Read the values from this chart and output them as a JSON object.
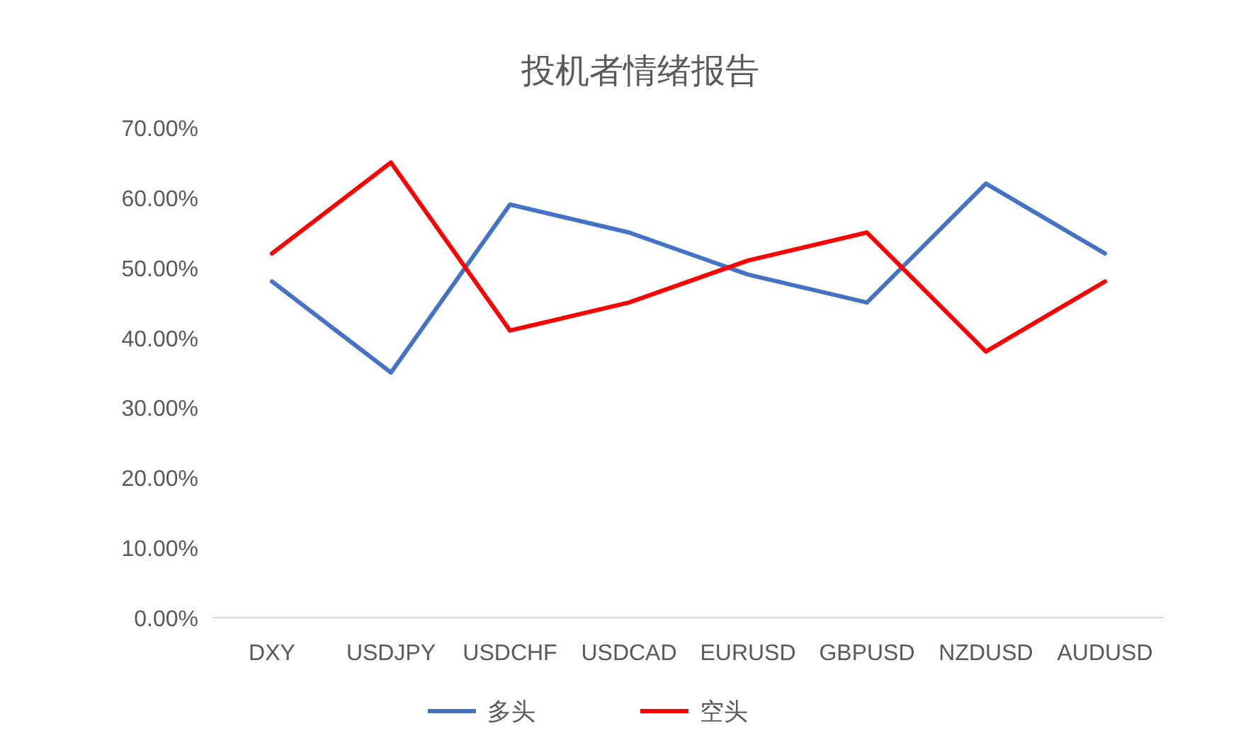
{
  "chart_data": {
    "type": "line",
    "title": "投机者情绪报告",
    "categories": [
      "DXY",
      "USDJPY",
      "USDCHF",
      "USDCAD",
      "EURUSD",
      "GBPUSD",
      "NZDUSD",
      "AUDUSD"
    ],
    "series": [
      {
        "name": "多头",
        "color": "#4472c4",
        "values": [
          48,
          35,
          59,
          55,
          49,
          45,
          62,
          52
        ]
      },
      {
        "name": "空头",
        "color": "#ff0000",
        "values": [
          52,
          65,
          41,
          45,
          51,
          55,
          38,
          48
        ]
      }
    ],
    "ylim": [
      0,
      70
    ],
    "yticks": [
      {
        "value": 0,
        "label": "0.00%"
      },
      {
        "value": 10,
        "label": "10.00%"
      },
      {
        "value": 20,
        "label": "20.00%"
      },
      {
        "value": 30,
        "label": "30.00%"
      },
      {
        "value": 40,
        "label": "40.00%"
      },
      {
        "value": 50,
        "label": "50.00%"
      },
      {
        "value": 60,
        "label": "60.00%"
      },
      {
        "value": 70,
        "label": "70.00%"
      }
    ],
    "grid": false,
    "legend": "bottom",
    "marker": "none",
    "line_style": "solid"
  }
}
